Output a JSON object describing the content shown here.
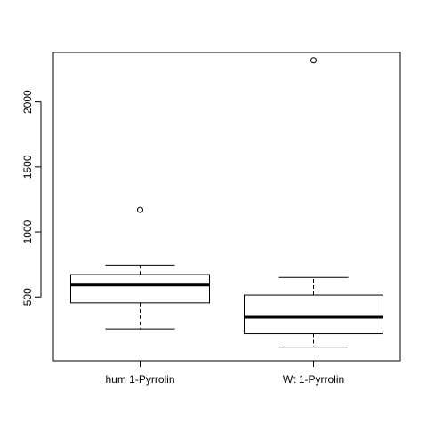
{
  "chart_data": {
    "type": "boxplot",
    "title": "",
    "xlabel": "",
    "ylabel": "",
    "ylim": [
      10,
      2380
    ],
    "y_ticks": [
      500,
      1000,
      1500,
      2000
    ],
    "grid": false,
    "legend": "none",
    "categories": [
      "hum 1-Pyrrolin",
      "Wt 1-Pyrrolin"
    ],
    "boxes": [
      {
        "category": "hum 1-Pyrrolin",
        "whisker_low": 255,
        "q1": 455,
        "median": 592,
        "q3": 672,
        "whisker_high": 745,
        "outliers": [
          1170
        ]
      },
      {
        "category": "Wt 1-Pyrrolin",
        "whisker_low": 115,
        "q1": 218,
        "median": 345,
        "q3": 515,
        "whisker_high": 650,
        "outliers": [
          2320
        ]
      }
    ],
    "colors": {
      "stroke": "#000000",
      "fill": "#ffffff"
    }
  }
}
